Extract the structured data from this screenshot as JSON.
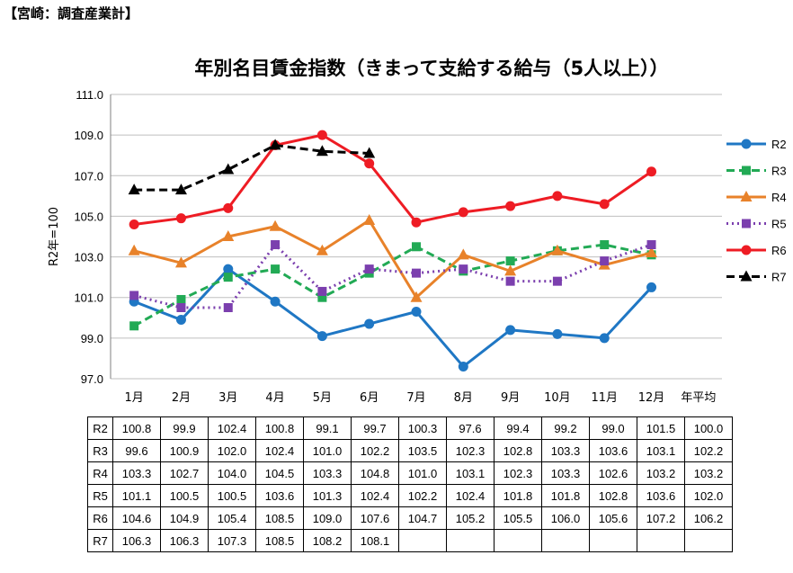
{
  "header": "【宮崎：調査産業計】",
  "chart_data": {
    "type": "line",
    "title": "年別名目賃金指数（きまって支給する給与（5人以上））",
    "ylabel": "R2年=100",
    "xlabel": "",
    "categories": [
      "1月",
      "2月",
      "3月",
      "4月",
      "5月",
      "6月",
      "7月",
      "8月",
      "9月",
      "10月",
      "11月",
      "12月"
    ],
    "table_extra_column": "年平均",
    "ylim": [
      97.0,
      111.0
    ],
    "yticks": [
      "97.0",
      "99.0",
      "101.0",
      "103.0",
      "105.0",
      "107.0",
      "109.0",
      "111.0"
    ],
    "grid": "horizontal",
    "legend_position": "right",
    "series": [
      {
        "name": "R2",
        "color": "#1f77c4",
        "dash": "solid",
        "marker": "circle",
        "values": [
          100.8,
          99.9,
          102.4,
          100.8,
          99.1,
          99.7,
          100.3,
          97.6,
          99.4,
          99.2,
          99.0,
          101.5
        ],
        "annual": "100.0",
        "labels": [
          "100.8",
          "99.9",
          "102.4",
          "100.8",
          "99.1",
          "99.7",
          "100.3",
          "97.6",
          "99.4",
          "99.2",
          "99.0",
          "101.5"
        ]
      },
      {
        "name": "R3",
        "color": "#22aa55",
        "dash": "dashed",
        "marker": "square",
        "values": [
          99.6,
          100.9,
          102.0,
          102.4,
          101.0,
          102.2,
          103.5,
          102.3,
          102.8,
          103.3,
          103.6,
          103.1
        ],
        "annual": "102.2",
        "labels": [
          "99.6",
          "100.9",
          "102.0",
          "102.4",
          "101.0",
          "102.2",
          "103.5",
          "102.3",
          "102.8",
          "103.3",
          "103.6",
          "103.1"
        ]
      },
      {
        "name": "R4",
        "color": "#e8822a",
        "dash": "solid",
        "marker": "triangle",
        "values": [
          103.3,
          102.7,
          104.0,
          104.5,
          103.3,
          104.8,
          101.0,
          103.1,
          102.3,
          103.3,
          102.6,
          103.2
        ],
        "annual": "103.2",
        "labels": [
          "103.3",
          "102.7",
          "104.0",
          "104.5",
          "103.3",
          "104.8",
          "101.0",
          "103.1",
          "102.3",
          "103.3",
          "102.6",
          "103.2"
        ]
      },
      {
        "name": "R5",
        "color": "#7b3fae",
        "dash": "dotted",
        "marker": "square",
        "values": [
          101.1,
          100.5,
          100.5,
          103.6,
          101.3,
          102.4,
          102.2,
          102.4,
          101.8,
          101.8,
          102.8,
          103.6
        ],
        "annual": "102.0",
        "labels": [
          "101.1",
          "100.5",
          "100.5",
          "103.6",
          "101.3",
          "102.4",
          "102.2",
          "102.4",
          "101.8",
          "101.8",
          "102.8",
          "103.6"
        ]
      },
      {
        "name": "R6",
        "color": "#ee1c24",
        "dash": "solid",
        "marker": "circle",
        "values": [
          104.6,
          104.9,
          105.4,
          108.5,
          109.0,
          107.6,
          104.7,
          105.2,
          105.5,
          106.0,
          105.6,
          107.2
        ],
        "annual": "106.2",
        "labels": [
          "104.6",
          "104.9",
          "105.4",
          "108.5",
          "109.0",
          "107.6",
          "104.7",
          "105.2",
          "105.5",
          "106.0",
          "105.6",
          "107.2"
        ]
      },
      {
        "name": "R7",
        "color": "#000000",
        "dash": "dashed",
        "marker": "triangle",
        "values": [
          106.3,
          106.3,
          107.3,
          108.5,
          108.2,
          108.1,
          null,
          null,
          null,
          null,
          null,
          null
        ],
        "annual": "",
        "labels": [
          "106.3",
          "106.3",
          "107.3",
          "108.5",
          "108.2",
          "108.1",
          "",
          "",
          "",
          "",
          "",
          ""
        ]
      }
    ]
  }
}
